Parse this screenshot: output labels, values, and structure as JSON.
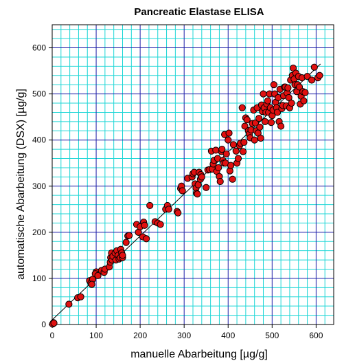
{
  "chart_data": {
    "type": "scatter",
    "title": "Pancreatic Elastase ELISA",
    "xlabel": "manuelle Abarbeitung [µg/g]",
    "ylabel": "automatische Abarbeitung (DSX) [µg/g]",
    "xlim": [
      0,
      640
    ],
    "ylim": [
      0,
      650
    ],
    "xticks": [
      0,
      100,
      200,
      300,
      400,
      500,
      600
    ],
    "yticks": [
      0,
      100,
      200,
      300,
      400,
      500,
      600
    ],
    "grid": {
      "minor_step": 20,
      "major_step": 100,
      "minor_color": "#1fd6d6",
      "major_color": "#1a1aa6"
    },
    "point_color": "#e01010",
    "point_edge_color": "#000000",
    "regression_line": {
      "x": [
        0,
        610
      ],
      "y": [
        10,
        565
      ]
    },
    "points": [
      [
        2,
        2
      ],
      [
        3,
        4
      ],
      [
        1,
        1
      ],
      [
        4,
        3
      ],
      [
        38,
        44
      ],
      [
        58,
        58
      ],
      [
        65,
        60
      ],
      [
        85,
        95
      ],
      [
        88,
        90
      ],
      [
        92,
        98
      ],
      [
        90,
        87
      ],
      [
        100,
        114
      ],
      [
        98,
        110
      ],
      [
        104,
        106
      ],
      [
        112,
        117
      ],
      [
        118,
        113
      ],
      [
        120,
        120
      ],
      [
        130,
        125
      ],
      [
        132,
        135
      ],
      [
        133,
        145
      ],
      [
        135,
        155
      ],
      [
        136,
        140
      ],
      [
        138,
        148
      ],
      [
        143,
        155
      ],
      [
        145,
        140
      ],
      [
        147,
        160
      ],
      [
        150,
        150
      ],
      [
        152,
        142
      ],
      [
        155,
        145
      ],
      [
        156,
        163
      ],
      [
        158,
        155
      ],
      [
        160,
        145
      ],
      [
        160,
        150
      ],
      [
        168,
        178
      ],
      [
        172,
        192
      ],
      [
        175,
        193
      ],
      [
        192,
        217
      ],
      [
        196,
        200
      ],
      [
        200,
        212
      ],
      [
        206,
        190
      ],
      [
        208,
        222
      ],
      [
        210,
        215
      ],
      [
        214,
        186
      ],
      [
        222,
        258
      ],
      [
        234,
        223
      ],
      [
        240,
        220
      ],
      [
        246,
        217
      ],
      [
        258,
        250
      ],
      [
        262,
        258
      ],
      [
        265,
        250
      ],
      [
        284,
        245
      ],
      [
        286,
        242
      ],
      [
        292,
        295
      ],
      [
        294,
        300
      ],
      [
        296,
        290
      ],
      [
        308,
        317
      ],
      [
        318,
        320
      ],
      [
        320,
        327
      ],
      [
        323,
        330
      ],
      [
        325,
        305
      ],
      [
        327,
        296
      ],
      [
        328,
        285
      ],
      [
        330,
        283
      ],
      [
        332,
        303
      ],
      [
        334,
        330
      ],
      [
        337,
        315
      ],
      [
        338,
        325
      ],
      [
        340,
        320
      ],
      [
        350,
        297
      ],
      [
        354,
        335
      ],
      [
        358,
        336
      ],
      [
        362,
        376
      ],
      [
        364,
        337
      ],
      [
        366,
        348
      ],
      [
        368,
        356
      ],
      [
        372,
        378
      ],
      [
        374,
        332
      ],
      [
        376,
        360
      ],
      [
        378,
        340
      ],
      [
        380,
        321
      ],
      [
        382,
        310
      ],
      [
        385,
        375
      ],
      [
        386,
        380
      ],
      [
        388,
        356
      ],
      [
        390,
        350
      ],
      [
        392,
        412
      ],
      [
        394,
        350
      ],
      [
        396,
        370
      ],
      [
        400,
        400
      ],
      [
        402,
        415
      ],
      [
        404,
        333
      ],
      [
        406,
        345
      ],
      [
        410,
        315
      ],
      [
        412,
        390
      ],
      [
        418,
        376
      ],
      [
        420,
        350
      ],
      [
        423,
        360
      ],
      [
        426,
        388
      ],
      [
        428,
        393
      ],
      [
        432,
        470
      ],
      [
        434,
        375
      ],
      [
        436,
        395
      ],
      [
        438,
        430
      ],
      [
        440,
        448
      ],
      [
        443,
        444
      ],
      [
        446,
        420
      ],
      [
        448,
        413
      ],
      [
        450,
        405
      ],
      [
        452,
        422
      ],
      [
        455,
        436
      ],
      [
        458,
        465
      ],
      [
        460,
        400
      ],
      [
        462,
        437
      ],
      [
        464,
        420
      ],
      [
        466,
        470
      ],
      [
        468,
        415
      ],
      [
        470,
        447
      ],
      [
        472,
        428
      ],
      [
        474,
        404
      ],
      [
        476,
        476
      ],
      [
        478,
        462
      ],
      [
        480,
        500
      ],
      [
        482,
        470
      ],
      [
        484,
        440
      ],
      [
        486,
        460
      ],
      [
        488,
        478
      ],
      [
        490,
        485
      ],
      [
        492,
        460
      ],
      [
        494,
        500
      ],
      [
        496,
        470
      ],
      [
        498,
        438
      ],
      [
        500,
        453
      ],
      [
        502,
        465
      ],
      [
        504,
        520
      ],
      [
        506,
        500
      ],
      [
        508,
        482
      ],
      [
        510,
        470
      ],
      [
        512,
        460
      ],
      [
        514,
        492
      ],
      [
        516,
        440
      ],
      [
        518,
        510
      ],
      [
        520,
        430
      ],
      [
        522,
        468
      ],
      [
        524,
        475
      ],
      [
        526,
        496
      ],
      [
        528,
        515
      ],
      [
        530,
        515
      ],
      [
        532,
        474
      ],
      [
        534,
        502
      ],
      [
        536,
        513
      ],
      [
        538,
        492
      ],
      [
        540,
        470
      ],
      [
        542,
        530
      ],
      [
        544,
        480
      ],
      [
        546,
        540
      ],
      [
        548,
        556
      ],
      [
        550,
        532
      ],
      [
        552,
        520
      ],
      [
        554,
        545
      ],
      [
        556,
        505
      ],
      [
        558,
        520
      ],
      [
        560,
        538
      ],
      [
        562,
        515
      ],
      [
        564,
        478
      ],
      [
        566,
        495
      ],
      [
        568,
        535
      ],
      [
        570,
        505
      ],
      [
        572,
        485
      ],
      [
        575,
        503
      ],
      [
        580,
        538
      ],
      [
        590,
        530
      ],
      [
        596,
        558
      ],
      [
        604,
        535
      ],
      [
        608,
        540
      ]
    ]
  }
}
